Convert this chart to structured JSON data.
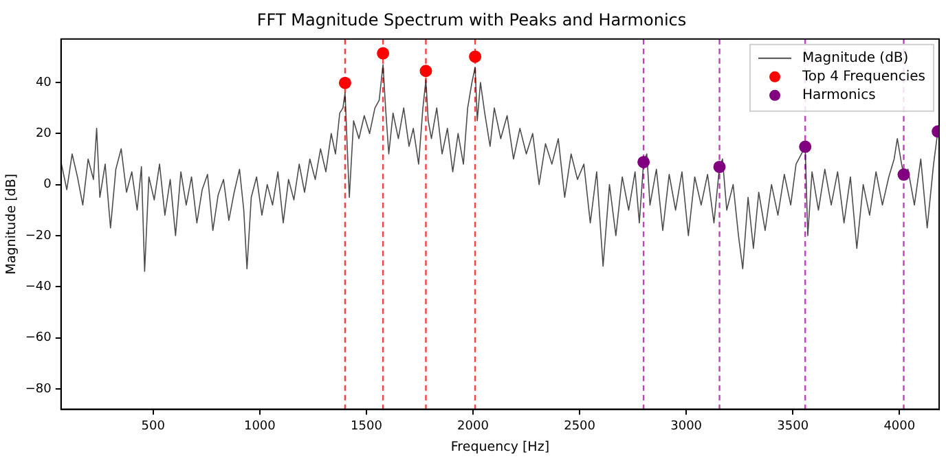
{
  "chart_data": {
    "type": "line",
    "title": "FFT Magnitude Spectrum with Peaks and Harmonics",
    "xlabel": "Frequency [Hz]",
    "ylabel": "Magnitude [dB]",
    "xlim": [
      68,
      4186
    ],
    "ylim": [
      -88,
      57
    ],
    "xticks": [
      500,
      1000,
      1500,
      2000,
      2500,
      3000,
      3500,
      4000
    ],
    "yticks": [
      -80,
      -60,
      -40,
      -20,
      0,
      20,
      40
    ],
    "grid": false,
    "legend": "top right",
    "series": [
      {
        "name": "Magnitude (dB)",
        "color": "#000000",
        "x": [
          70,
          95,
          120,
          145,
          170,
          195,
          220,
          235,
          250,
          275,
          300,
          325,
          350,
          375,
          400,
          425,
          445,
          460,
          480,
          505,
          530,
          555,
          580,
          605,
          630,
          655,
          680,
          705,
          730,
          755,
          780,
          805,
          830,
          855,
          880,
          905,
          925,
          940,
          960,
          985,
          1010,
          1035,
          1060,
          1085,
          1110,
          1135,
          1160,
          1185,
          1210,
          1235,
          1260,
          1285,
          1310,
          1335,
          1355,
          1375,
          1390,
          1400,
          1410,
          1420,
          1440,
          1465,
          1490,
          1515,
          1540,
          1560,
          1578,
          1590,
          1605,
          1625,
          1650,
          1675,
          1700,
          1720,
          1745,
          1765,
          1779,
          1790,
          1805,
          1830,
          1855,
          1880,
          1905,
          1930,
          1955,
          1975,
          1995,
          2010,
          2020,
          2035,
          2055,
          2080,
          2100,
          2130,
          2160,
          2190,
          2220,
          2250,
          2280,
          2310,
          2340,
          2370,
          2400,
          2430,
          2460,
          2490,
          2520,
          2550,
          2580,
          2610,
          2640,
          2670,
          2700,
          2730,
          2760,
          2780,
          2800,
          2815,
          2830,
          2860,
          2890,
          2920,
          2950,
          2980,
          3010,
          3040,
          3070,
          3100,
          3130,
          3156,
          3170,
          3190,
          3220,
          3245,
          3265,
          3290,
          3315,
          3340,
          3370,
          3400,
          3430,
          3460,
          3490,
          3515,
          3540,
          3558,
          3570,
          3590,
          3620,
          3650,
          3680,
          3710,
          3740,
          3770,
          3800,
          3830,
          3860,
          3890,
          3920,
          3950,
          3975,
          3990,
          4010,
          4020,
          4040,
          4070,
          4100,
          4130,
          4160,
          4180
        ],
        "values": [
          8,
          -2,
          12,
          3,
          -8,
          10,
          2,
          22,
          -5,
          8,
          -17,
          6,
          14,
          -3,
          5,
          -10,
          7,
          -34,
          3,
          -6,
          8,
          -12,
          2,
          -20,
          5,
          -8,
          3,
          -15,
          -2,
          4,
          -18,
          -4,
          2,
          -14,
          -3,
          6,
          -10,
          -33,
          -5,
          3,
          -12,
          0,
          -8,
          5,
          -15,
          2,
          -6,
          8,
          -3,
          10,
          2,
          14,
          5,
          20,
          12,
          28,
          30,
          36,
          15,
          -5,
          25,
          18,
          27,
          20,
          30,
          33,
          47,
          30,
          12,
          28,
          18,
          30,
          15,
          22,
          8,
          30,
          41,
          25,
          18,
          30,
          12,
          22,
          5,
          20,
          8,
          30,
          40,
          46,
          25,
          40,
          28,
          15,
          30,
          18,
          27,
          10,
          22,
          12,
          20,
          0,
          16,
          8,
          18,
          -5,
          12,
          2,
          8,
          -15,
          5,
          -32,
          0,
          -20,
          3,
          -10,
          5,
          -15,
          8.8,
          12,
          -8,
          6,
          -18,
          4,
          -10,
          5,
          -20,
          3,
          -8,
          4,
          -15,
          6.9,
          10,
          -10,
          0,
          -20,
          -33,
          -5,
          -25,
          -3,
          -18,
          0,
          -12,
          4,
          -8,
          8,
          12,
          14.8,
          -20,
          5,
          -10,
          6,
          -8,
          5,
          -15,
          3,
          -25,
          0,
          -12,
          5,
          -8,
          3,
          10,
          18,
          8,
          3.9,
          6,
          -8,
          10,
          -17,
          8,
          21
        ]
      },
      {
        "name": "Top 4 Frequencies",
        "type": "scatter",
        "marker": "circle",
        "color": "#ff0000",
        "x": [
          1400,
          1578,
          1779,
          2010
        ],
        "values": [
          39.8,
          51.4,
          44.5,
          50.1
        ]
      },
      {
        "name": "Harmonics",
        "type": "scatter",
        "marker": "circle",
        "color": "#800080",
        "x": [
          2800,
          3156,
          3558,
          4020,
          4180
        ],
        "values": [
          8.8,
          6.9,
          14.8,
          3.9,
          20.8
        ]
      }
    ],
    "ref_lines": [
      {
        "axis": "x",
        "value": 1400,
        "color": "#ff4040",
        "line_style": "dashed"
      },
      {
        "axis": "x",
        "value": 1578,
        "color": "#ff4040",
        "line_style": "dashed"
      },
      {
        "axis": "x",
        "value": 1779,
        "color": "#ff4040",
        "line_style": "dashed"
      },
      {
        "axis": "x",
        "value": 2010,
        "color": "#ff4040",
        "line_style": "dashed"
      },
      {
        "axis": "x",
        "value": 2800,
        "color": "#c040c0",
        "line_style": "dashed"
      },
      {
        "axis": "x",
        "value": 3156,
        "color": "#c040c0",
        "line_style": "dashed"
      },
      {
        "axis": "x",
        "value": 3558,
        "color": "#c040c0",
        "line_style": "dashed"
      },
      {
        "axis": "x",
        "value": 4020,
        "color": "#c040c0",
        "line_style": "dashed"
      }
    ]
  }
}
